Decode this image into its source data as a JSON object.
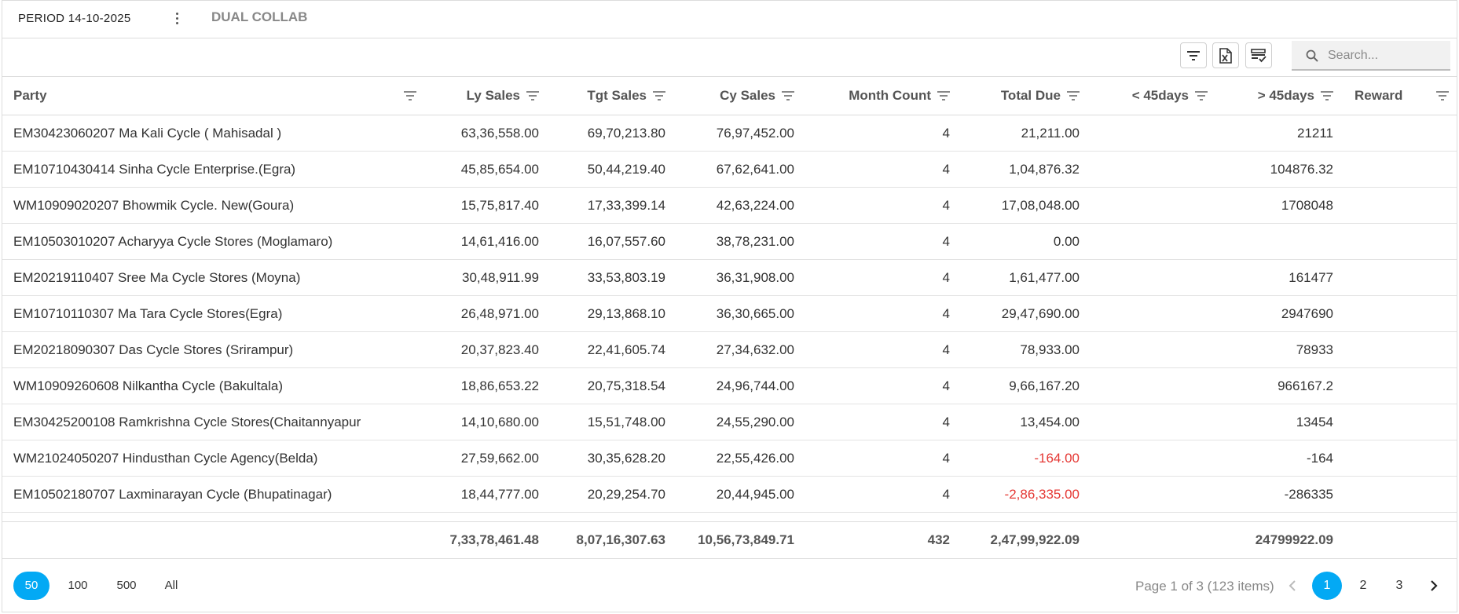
{
  "header": {
    "period_title": "PERIOD 14-10-2025",
    "tab_label": "DUAL COLLAB"
  },
  "toolbar": {
    "search_placeholder": "Search...",
    "icons": [
      "filter-icon",
      "export-excel-icon",
      "column-chooser-icon"
    ]
  },
  "columns": [
    {
      "key": "party",
      "label": "Party"
    },
    {
      "key": "ly_sales",
      "label": "Ly Sales"
    },
    {
      "key": "tgt_sales",
      "label": "Tgt Sales"
    },
    {
      "key": "cy_sales",
      "label": "Cy Sales"
    },
    {
      "key": "month_count",
      "label": "Month Count"
    },
    {
      "key": "total_due",
      "label": "Total Due"
    },
    {
      "key": "lt45",
      "label": "< 45days"
    },
    {
      "key": "gt45",
      "label": "> 45days"
    },
    {
      "key": "reward",
      "label": "Reward"
    }
  ],
  "rows": [
    {
      "party": "EM30423060207 Ma Kali Cycle ( Mahisadal )",
      "ly_sales": "63,36,558.00",
      "tgt_sales": "69,70,213.80",
      "cy_sales": "76,97,452.00",
      "month_count": "4",
      "total_due": "21,211.00",
      "lt45": "",
      "gt45": "21211",
      "reward": ""
    },
    {
      "party": "EM10710430414 Sinha Cycle Enterprise.(Egra)",
      "ly_sales": "45,85,654.00",
      "tgt_sales": "50,44,219.40",
      "cy_sales": "67,62,641.00",
      "month_count": "4",
      "total_due": "1,04,876.32",
      "lt45": "",
      "gt45": "104876.32",
      "reward": ""
    },
    {
      "party": "WM10909020207 Bhowmik Cycle. New(Goura)",
      "ly_sales": "15,75,817.40",
      "tgt_sales": "17,33,399.14",
      "cy_sales": "42,63,224.00",
      "month_count": "4",
      "total_due": "17,08,048.00",
      "lt45": "",
      "gt45": "1708048",
      "reward": ""
    },
    {
      "party": "EM10503010207 Acharyya Cycle Stores (Moglamaro)",
      "ly_sales": "14,61,416.00",
      "tgt_sales": "16,07,557.60",
      "cy_sales": "38,78,231.00",
      "month_count": "4",
      "total_due": "0.00",
      "lt45": "",
      "gt45": "",
      "reward": ""
    },
    {
      "party": "EM20219110407 Sree Ma Cycle Stores (Moyna)",
      "ly_sales": "30,48,911.99",
      "tgt_sales": "33,53,803.19",
      "cy_sales": "36,31,908.00",
      "month_count": "4",
      "total_due": "1,61,477.00",
      "lt45": "",
      "gt45": "161477",
      "reward": ""
    },
    {
      "party": "EM10710110307 Ma Tara Cycle Stores(Egra)",
      "ly_sales": "26,48,971.00",
      "tgt_sales": "29,13,868.10",
      "cy_sales": "36,30,665.00",
      "month_count": "4",
      "total_due": "29,47,690.00",
      "lt45": "",
      "gt45": "2947690",
      "reward": ""
    },
    {
      "party": "EM20218090307 Das Cycle Stores (Srirampur)",
      "ly_sales": "20,37,823.40",
      "tgt_sales": "22,41,605.74",
      "cy_sales": "27,34,632.00",
      "month_count": "4",
      "total_due": "78,933.00",
      "lt45": "",
      "gt45": "78933",
      "reward": ""
    },
    {
      "party": "WM10909260608 Nilkantha Cycle (Bakultala)",
      "ly_sales": "18,86,653.22",
      "tgt_sales": "20,75,318.54",
      "cy_sales": "24,96,744.00",
      "month_count": "4",
      "total_due": "9,66,167.20",
      "lt45": "",
      "gt45": "966167.2",
      "reward": ""
    },
    {
      "party": "EM30425200108 Ramkrishna Cycle Stores(Chaitannyapur",
      "ly_sales": "14,10,680.00",
      "tgt_sales": "15,51,748.00",
      "cy_sales": "24,55,290.00",
      "month_count": "4",
      "total_due": "13,454.00",
      "lt45": "",
      "gt45": "13454",
      "reward": ""
    },
    {
      "party": "WM21024050207 Hindusthan Cycle Agency(Belda)",
      "ly_sales": "27,59,662.00",
      "tgt_sales": "30,35,628.20",
      "cy_sales": "22,55,426.00",
      "month_count": "4",
      "total_due": "-164.00",
      "lt45": "",
      "gt45": "-164",
      "reward": "",
      "negative_due": true
    },
    {
      "party": "EM10502180707 Laxminarayan Cycle (Bhupatinagar)",
      "ly_sales": "18,44,777.00",
      "tgt_sales": "20,29,254.70",
      "cy_sales": "20,44,945.00",
      "month_count": "4",
      "total_due": "-2,86,335.00",
      "lt45": "",
      "gt45": "-286335",
      "reward": "",
      "negative_due": true
    }
  ],
  "totals": {
    "ly_sales": "7,33,78,461.48",
    "tgt_sales": "8,07,16,307.63",
    "cy_sales": "10,56,73,849.71",
    "month_count": "432",
    "total_due": "2,47,99,922.09",
    "gt45": "24799922.09"
  },
  "pager": {
    "page_sizes": [
      "50",
      "100",
      "500",
      "All"
    ],
    "active_size": "50",
    "info": "Page 1 of 3 (123 items)",
    "pages": [
      "1",
      "2",
      "3"
    ],
    "active_page": "1"
  },
  "colors": {
    "accent": "#03a9f4",
    "negative": "#e53935"
  }
}
